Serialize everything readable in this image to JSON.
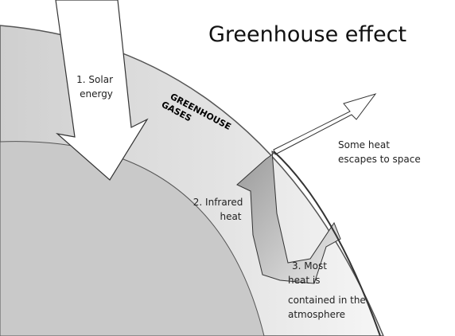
{
  "title": "Greenhouse effect",
  "labels": {
    "solar": [
      "1. Solar",
      "energy"
    ],
    "gases": [
      "GREENHOUSE",
      "GASES"
    ],
    "escape": [
      "Some heat",
      "escapes to space"
    ],
    "infrared": [
      "2. Infrared",
      "heat"
    ],
    "contained": [
      "3. Most",
      "heat is",
      "contained in the",
      "atmosphere"
    ]
  }
}
